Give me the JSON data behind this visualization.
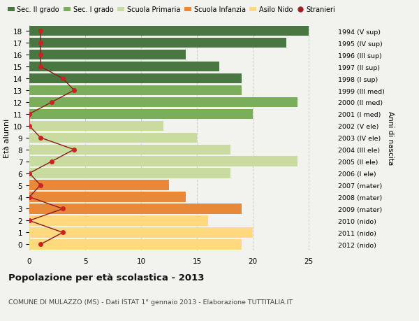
{
  "ages": [
    0,
    1,
    2,
    3,
    4,
    5,
    6,
    7,
    8,
    9,
    10,
    11,
    12,
    13,
    14,
    15,
    16,
    17,
    18
  ],
  "bar_values": [
    19,
    20,
    16,
    19,
    14,
    12.5,
    18,
    24,
    18,
    15,
    12,
    20,
    24,
    19,
    19,
    17,
    14,
    23,
    25
  ],
  "bar_colors": [
    "#FFD97D",
    "#FFD97D",
    "#FFD97D",
    "#E8893A",
    "#E8893A",
    "#E8893A",
    "#C8DCA0",
    "#C8DCA0",
    "#C8DCA0",
    "#C8DCA0",
    "#C8DCA0",
    "#7BAE5A",
    "#7BAE5A",
    "#7BAE5A",
    "#4A7741",
    "#4A7741",
    "#4A7741",
    "#4A7741",
    "#4A7741"
  ],
  "right_labels": [
    "2012 (nido)",
    "2011 (nido)",
    "2010 (nido)",
    "2009 (mater)",
    "2008 (mater)",
    "2007 (mater)",
    "2006 (I ele)",
    "2005 (II ele)",
    "2004 (III ele)",
    "2003 (IV ele)",
    "2002 (V ele)",
    "2001 (I med)",
    "2000 (II med)",
    "1999 (III med)",
    "1998 (I sup)",
    "1997 (II sup)",
    "1996 (III sup)",
    "1995 (IV sup)",
    "1994 (V sup)"
  ],
  "stranieri_values": [
    1,
    3,
    0,
    3,
    0,
    1,
    0,
    2,
    4,
    1,
    0,
    0,
    2,
    4,
    3,
    1,
    1,
    1,
    1
  ],
  "legend_labels": [
    "Sec. II grado",
    "Sec. I grado",
    "Scuola Primaria",
    "Scuola Infanzia",
    "Asilo Nido",
    "Stranieri"
  ],
  "legend_colors": [
    "#4A7741",
    "#7BAE5A",
    "#C8DCA0",
    "#E8893A",
    "#FFD97D",
    "#A02020"
  ],
  "ylabel": "Età alunni",
  "right_ylabel": "Anni di nascita",
  "title": "Popolazione per età scolastica - 2013",
  "subtitle": "COMUNE DI MULAZZO (MS) - Dati ISTAT 1° gennaio 2013 - Elaborazione TUTTITALIA.IT",
  "xlim": [
    0,
    27
  ],
  "bg_color": "#F2F2EE",
  "grid_color": "#CCCCCC"
}
